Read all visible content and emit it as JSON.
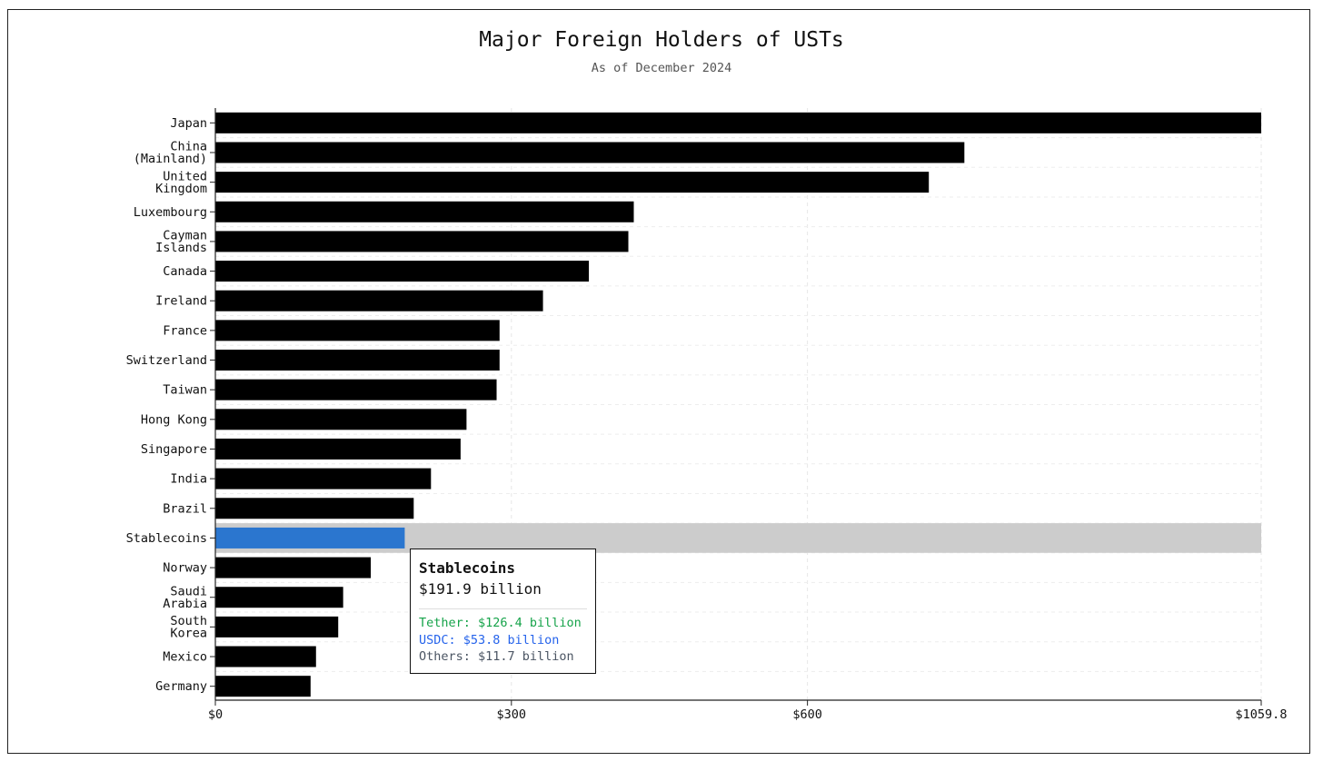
{
  "chart_data": {
    "type": "bar",
    "orientation": "horizontal",
    "title": "Major Foreign Holders of USTs",
    "subtitle": "As of December 2024",
    "categories": [
      "Japan",
      "China (Mainland)",
      "United Kingdom",
      "Luxembourg",
      "Cayman Islands",
      "Canada",
      "Ireland",
      "France",
      "Switzerland",
      "Taiwan",
      "Hong Kong",
      "Singapore",
      "India",
      "Brazil",
      "Stablecoins",
      "Norway",
      "Saudi Arabia",
      "South Korea",
      "Mexico",
      "Germany"
    ],
    "category_lines": [
      [
        "Japan"
      ],
      [
        "China",
        "(Mainland)"
      ],
      [
        "United",
        "Kingdom"
      ],
      [
        "Luxembourg"
      ],
      [
        "Cayman",
        "Islands"
      ],
      [
        "Canada"
      ],
      [
        "Ireland"
      ],
      [
        "France"
      ],
      [
        "Switzerland"
      ],
      [
        "Taiwan"
      ],
      [
        "Hong Kong"
      ],
      [
        "Singapore"
      ],
      [
        "India"
      ],
      [
        "Brazil"
      ],
      [
        "Stablecoins"
      ],
      [
        "Norway"
      ],
      [
        "Saudi",
        "Arabia"
      ],
      [
        "South",
        "Korea"
      ],
      [
        "Mexico"
      ],
      [
        "Germany"
      ]
    ],
    "values": [
      1059.8,
      759.0,
      723.0,
      424.0,
      418.5,
      378.5,
      332.0,
      288.0,
      288.0,
      285.0,
      254.5,
      248.5,
      218.5,
      201.0,
      191.9,
      157.5,
      129.5,
      124.5,
      102.0,
      96.5
    ],
    "xlim": [
      0,
      1059.8
    ],
    "x_ticks": [
      0,
      300,
      600,
      1059.8
    ],
    "x_tick_labels": [
      "$0",
      "$300",
      "$600",
      "$1059.8"
    ],
    "grid": true,
    "bar_color": "#000000",
    "highlight_category": "Stablecoins",
    "highlight_color": "#2b76cf",
    "highlight_band_color": "#cccccc",
    "tooltip": {
      "title": "Stablecoins",
      "total": "$191.9 billion",
      "breakdown": [
        {
          "label": "Tether: $126.4 billion",
          "color": "#16a34a"
        },
        {
          "label": "USDC: $53.8 billion",
          "color": "#2563eb"
        },
        {
          "label": "Others: $11.7 billion",
          "color": "#4b5563"
        }
      ]
    }
  }
}
